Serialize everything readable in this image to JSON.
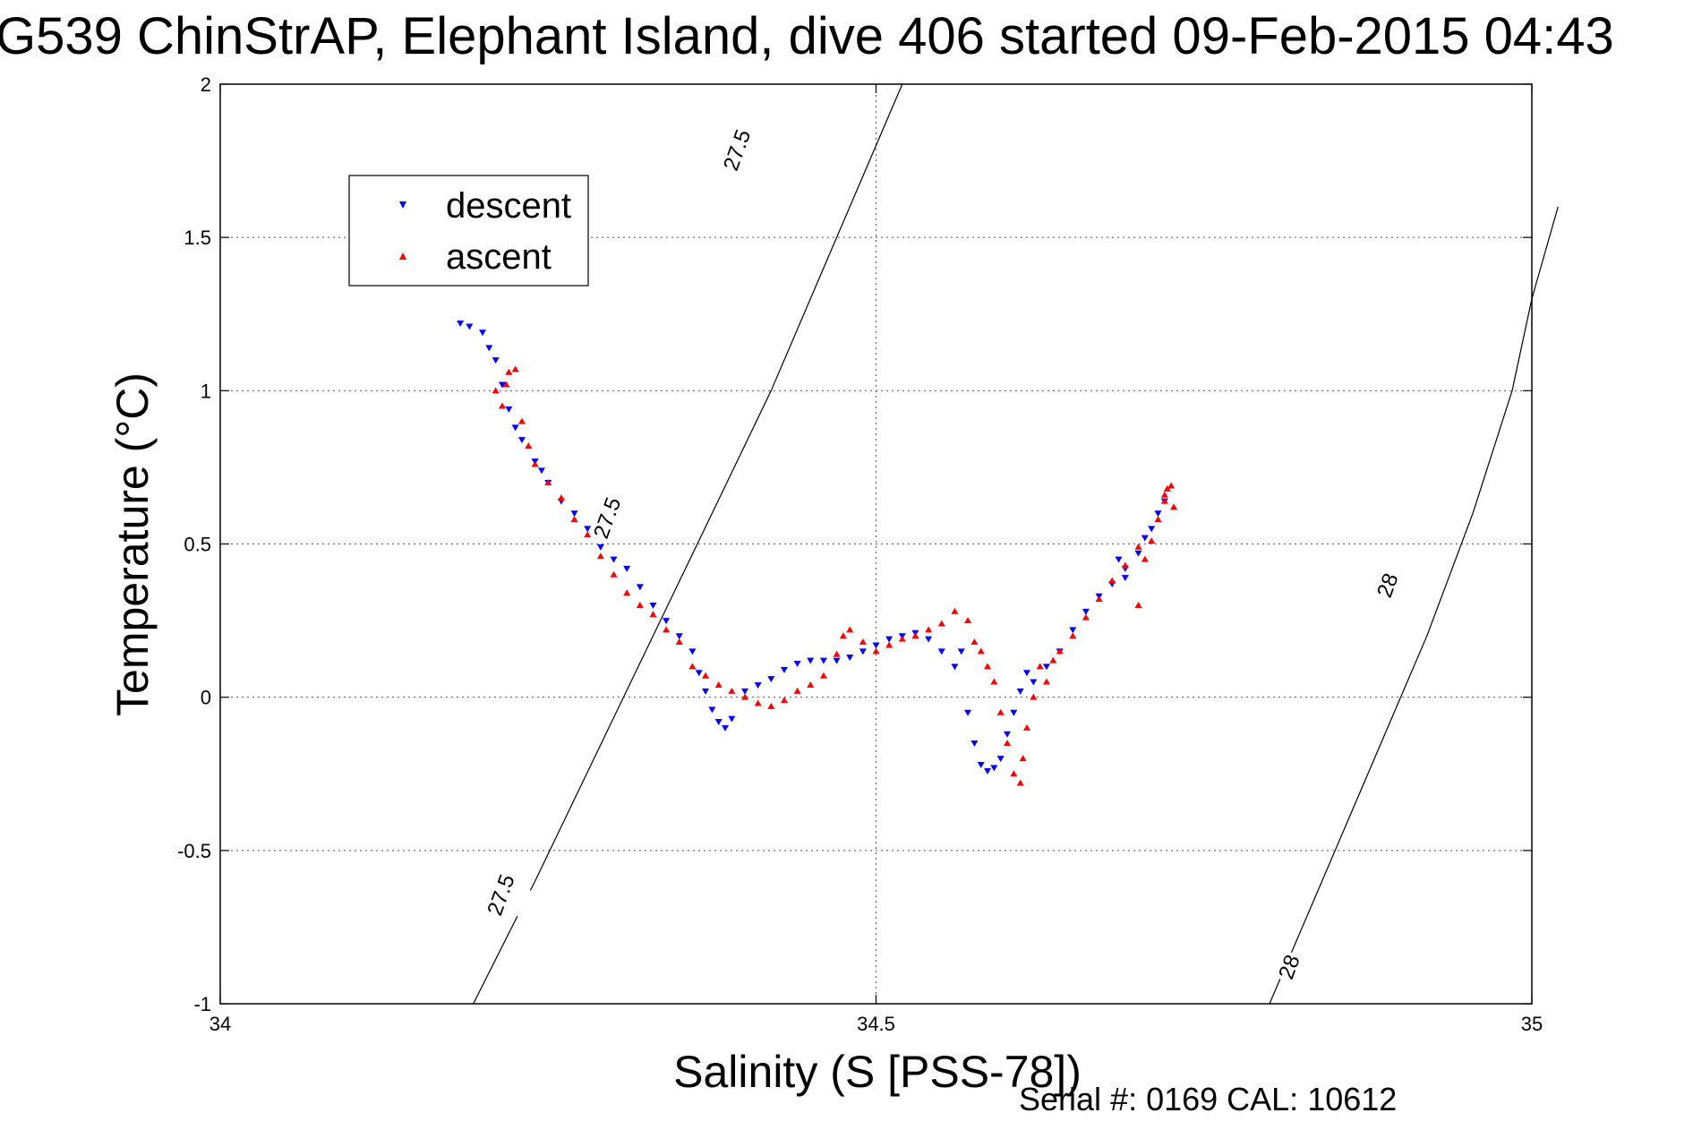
{
  "chart_data": {
    "type": "scatter",
    "title": "G539 ChinStrAP, Elephant Island, dive 406 started 09-Feb-2015 04:43",
    "xlabel": "Salinity (S [PSS-78])",
    "ylabel": "Temperature (°C)",
    "xlim": [
      34,
      35
    ],
    "ylim": [
      -1,
      2
    ],
    "xticks": [
      "34",
      "34.5",
      "35"
    ],
    "yticks": [
      "-1",
      "-0.5",
      "0",
      "0.5",
      "1",
      "1.5",
      "2"
    ],
    "grid": true,
    "legend_position": "top-left",
    "footer": "Serial #: 0169 CAL: 10612",
    "density_contours": [
      {
        "label": "27.5",
        "points": [
          [
            34.193,
            -1.0
          ],
          [
            34.24,
            -0.6
          ],
          [
            34.285,
            -0.2
          ],
          [
            34.33,
            0.2
          ],
          [
            34.375,
            0.6
          ],
          [
            34.42,
            1.0
          ],
          [
            34.46,
            1.4
          ],
          [
            34.5,
            1.8
          ],
          [
            34.52,
            2.0
          ]
        ]
      },
      {
        "label": "28",
        "points": [
          [
            34.8,
            -1.0
          ],
          [
            34.84,
            -0.6
          ],
          [
            34.88,
            -0.2
          ],
          [
            34.92,
            0.2
          ],
          [
            34.955,
            0.6
          ],
          [
            34.985,
            1.0
          ],
          [
            35.0,
            1.3
          ],
          [
            35.02,
            1.6
          ]
        ]
      }
    ],
    "contour_label_positions": [
      {
        "text": "27.5",
        "x": 34.394,
        "y": 1.785
      },
      {
        "text": "27.5",
        "x": 34.295,
        "y": 0.585
      },
      {
        "text": "27.5",
        "x": 34.214,
        "y": -0.645
      },
      {
        "text": "28",
        "x": 34.89,
        "y": 0.365
      },
      {
        "text": "28",
        "x": 34.815,
        "y": -0.88
      }
    ],
    "series": [
      {
        "name": "descent",
        "color": "#0000ff",
        "marker": "triangle-down",
        "points": [
          [
            34.183,
            1.22
          ],
          [
            34.19,
            1.21
          ],
          [
            34.2,
            1.19
          ],
          [
            34.205,
            1.14
          ],
          [
            34.21,
            1.1
          ],
          [
            34.215,
            1.02
          ],
          [
            34.22,
            0.94
          ],
          [
            34.225,
            0.88
          ],
          [
            34.23,
            0.84
          ],
          [
            34.24,
            0.77
          ],
          [
            34.245,
            0.74
          ],
          [
            34.25,
            0.7
          ],
          [
            34.26,
            0.64
          ],
          [
            34.27,
            0.6
          ],
          [
            34.28,
            0.55
          ],
          [
            34.29,
            0.49
          ],
          [
            34.3,
            0.45
          ],
          [
            34.31,
            0.42
          ],
          [
            34.32,
            0.36
          ],
          [
            34.33,
            0.3
          ],
          [
            34.34,
            0.25
          ],
          [
            34.35,
            0.2
          ],
          [
            34.36,
            0.15
          ],
          [
            34.365,
            0.08
          ],
          [
            34.37,
            0.02
          ],
          [
            34.375,
            -0.04
          ],
          [
            34.38,
            -0.08
          ],
          [
            34.385,
            -0.1
          ],
          [
            34.39,
            -0.07
          ],
          [
            34.4,
            0.02
          ],
          [
            34.41,
            0.04
          ],
          [
            34.42,
            0.06
          ],
          [
            34.43,
            0.09
          ],
          [
            34.44,
            0.11
          ],
          [
            34.45,
            0.12
          ],
          [
            34.46,
            0.12
          ],
          [
            34.47,
            0.12
          ],
          [
            34.48,
            0.13
          ],
          [
            34.49,
            0.15
          ],
          [
            34.5,
            0.17
          ],
          [
            34.51,
            0.19
          ],
          [
            34.52,
            0.2
          ],
          [
            34.53,
            0.21
          ],
          [
            34.54,
            0.19
          ],
          [
            34.55,
            0.15
          ],
          [
            34.56,
            0.1
          ],
          [
            34.565,
            0.15
          ],
          [
            34.57,
            -0.05
          ],
          [
            34.575,
            -0.15
          ],
          [
            34.58,
            -0.22
          ],
          [
            34.585,
            -0.24
          ],
          [
            34.59,
            -0.23
          ],
          [
            34.595,
            -0.2
          ],
          [
            34.6,
            -0.12
          ],
          [
            34.605,
            -0.05
          ],
          [
            34.61,
            0.02
          ],
          [
            34.615,
            0.08
          ],
          [
            34.62,
            0.05
          ],
          [
            34.63,
            0.1
          ],
          [
            34.64,
            0.15
          ],
          [
            34.65,
            0.22
          ],
          [
            34.66,
            0.28
          ],
          [
            34.67,
            0.33
          ],
          [
            34.68,
            0.37
          ],
          [
            34.69,
            0.42
          ],
          [
            34.7,
            0.47
          ],
          [
            34.705,
            0.52
          ],
          [
            34.71,
            0.55
          ],
          [
            34.715,
            0.6
          ],
          [
            34.72,
            0.64
          ],
          [
            34.685,
            0.45
          ],
          [
            34.69,
            0.39
          ]
        ]
      },
      {
        "name": "ascent",
        "color": "#ff0000",
        "marker": "triangle-up",
        "points": [
          [
            34.21,
            1.0
          ],
          [
            34.215,
            0.95
          ],
          [
            34.218,
            1.02
          ],
          [
            34.22,
            1.06
          ],
          [
            34.225,
            1.07
          ],
          [
            34.23,
            0.9
          ],
          [
            34.235,
            0.82
          ],
          [
            34.24,
            0.76
          ],
          [
            34.25,
            0.7
          ],
          [
            34.26,
            0.65
          ],
          [
            34.27,
            0.58
          ],
          [
            34.28,
            0.53
          ],
          [
            34.29,
            0.46
          ],
          [
            34.3,
            0.4
          ],
          [
            34.31,
            0.34
          ],
          [
            34.32,
            0.3
          ],
          [
            34.33,
            0.27
          ],
          [
            34.34,
            0.22
          ],
          [
            34.35,
            0.18
          ],
          [
            34.36,
            0.1
          ],
          [
            34.37,
            0.07
          ],
          [
            34.38,
            0.04
          ],
          [
            34.39,
            0.02
          ],
          [
            34.4,
            0.0
          ],
          [
            34.41,
            -0.02
          ],
          [
            34.42,
            -0.03
          ],
          [
            34.43,
            -0.01
          ],
          [
            34.44,
            0.02
          ],
          [
            34.45,
            0.04
          ],
          [
            34.46,
            0.07
          ],
          [
            34.47,
            0.14
          ],
          [
            34.475,
            0.2
          ],
          [
            34.48,
            0.22
          ],
          [
            34.49,
            0.18
          ],
          [
            34.5,
            0.15
          ],
          [
            34.51,
            0.17
          ],
          [
            34.52,
            0.19
          ],
          [
            34.53,
            0.2
          ],
          [
            34.54,
            0.22
          ],
          [
            34.55,
            0.24
          ],
          [
            34.56,
            0.28
          ],
          [
            34.57,
            0.25
          ],
          [
            34.575,
            0.18
          ],
          [
            34.58,
            0.15
          ],
          [
            34.585,
            0.1
          ],
          [
            34.59,
            0.05
          ],
          [
            34.595,
            -0.05
          ],
          [
            34.6,
            -0.15
          ],
          [
            34.605,
            -0.25
          ],
          [
            34.61,
            -0.28
          ],
          [
            34.612,
            -0.2
          ],
          [
            34.615,
            -0.1
          ],
          [
            34.62,
            0.0
          ],
          [
            34.625,
            0.1
          ],
          [
            34.63,
            0.05
          ],
          [
            34.635,
            0.12
          ],
          [
            34.64,
            0.15
          ],
          [
            34.65,
            0.2
          ],
          [
            34.66,
            0.26
          ],
          [
            34.67,
            0.32
          ],
          [
            34.68,
            0.38
          ],
          [
            34.69,
            0.43
          ],
          [
            34.7,
            0.49
          ],
          [
            34.71,
            0.51
          ],
          [
            34.715,
            0.58
          ],
          [
            34.72,
            0.64
          ],
          [
            34.722,
            0.68
          ],
          [
            34.725,
            0.69
          ],
          [
            34.727,
            0.62
          ],
          [
            34.7,
            0.3
          ],
          [
            34.705,
            0.45
          ],
          [
            34.72,
            0.66
          ]
        ]
      }
    ]
  }
}
